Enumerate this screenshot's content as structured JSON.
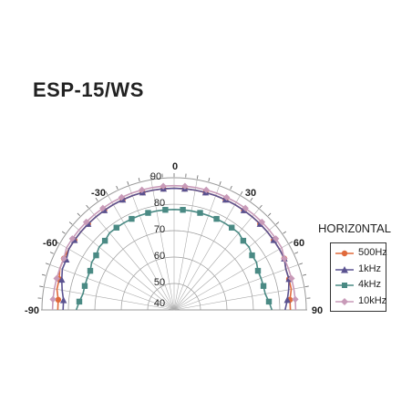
{
  "chart_data": {
    "type": "polar",
    "title": "ESP-15/WS",
    "mode_label": "HORIZ0NTAL",
    "angle_ticks": [
      "-90",
      "-60",
      "-30",
      "0",
      "30",
      "60",
      "90"
    ],
    "radial_ticks": [
      "40",
      "50",
      "60",
      "70",
      "80",
      "90"
    ],
    "r_range": [
      40,
      90
    ],
    "theta": [
      -90,
      -85,
      -80,
      -75,
      -70,
      -65,
      -60,
      -55,
      -50,
      -45,
      -40,
      -35,
      -30,
      -25,
      -20,
      -15,
      -10,
      -5,
      0,
      5,
      10,
      15,
      20,
      25,
      30,
      35,
      40,
      45,
      50,
      55,
      60,
      65,
      70,
      75,
      80,
      85,
      90
    ],
    "legend_placement": "right",
    "series": [
      {
        "name": "500Hz",
        "color": "#e06a3c",
        "marker": "circle",
        "values": [
          84,
          84,
          85,
          85,
          86,
          86,
          86,
          86,
          86,
          86,
          86,
          86,
          86,
          86,
          86,
          86,
          86,
          86,
          86,
          86,
          86,
          86,
          86,
          86,
          86,
          86,
          86,
          86,
          86,
          86,
          86,
          86,
          85,
          85,
          85,
          84,
          84
        ]
      },
      {
        "name": "1kHz",
        "color": "#5a5290",
        "marker": "triangle",
        "values": [
          82,
          82,
          83,
          84,
          85,
          85,
          86,
          86,
          86,
          86,
          86,
          86,
          86,
          86,
          86,
          86,
          86,
          86,
          86,
          86,
          86,
          86,
          86,
          86,
          86,
          86,
          86,
          86,
          86,
          86,
          86,
          86,
          85,
          85,
          84,
          83,
          82
        ]
      },
      {
        "name": "4kHz",
        "color": "#4a8a84",
        "marker": "square",
        "values": [
          77,
          76,
          75,
          75,
          75,
          75,
          76,
          76,
          77,
          77,
          78,
          78,
          78,
          78,
          78,
          78,
          78,
          78,
          78,
          78,
          78,
          78,
          78,
          78,
          78,
          78,
          78,
          77,
          77,
          76,
          76,
          75,
          75,
          75,
          75,
          76,
          77
        ]
      },
      {
        "name": "10kHz",
        "color": "#c89ab8",
        "marker": "diamond",
        "values": [
          86,
          86,
          86,
          86,
          86,
          86,
          87,
          87,
          87,
          87,
          87,
          87,
          87,
          87,
          87,
          87,
          87,
          87,
          87,
          87,
          87,
          87,
          87,
          87,
          87,
          87,
          87,
          87,
          87,
          87,
          87,
          86,
          86,
          86,
          86,
          86,
          86
        ]
      }
    ]
  }
}
